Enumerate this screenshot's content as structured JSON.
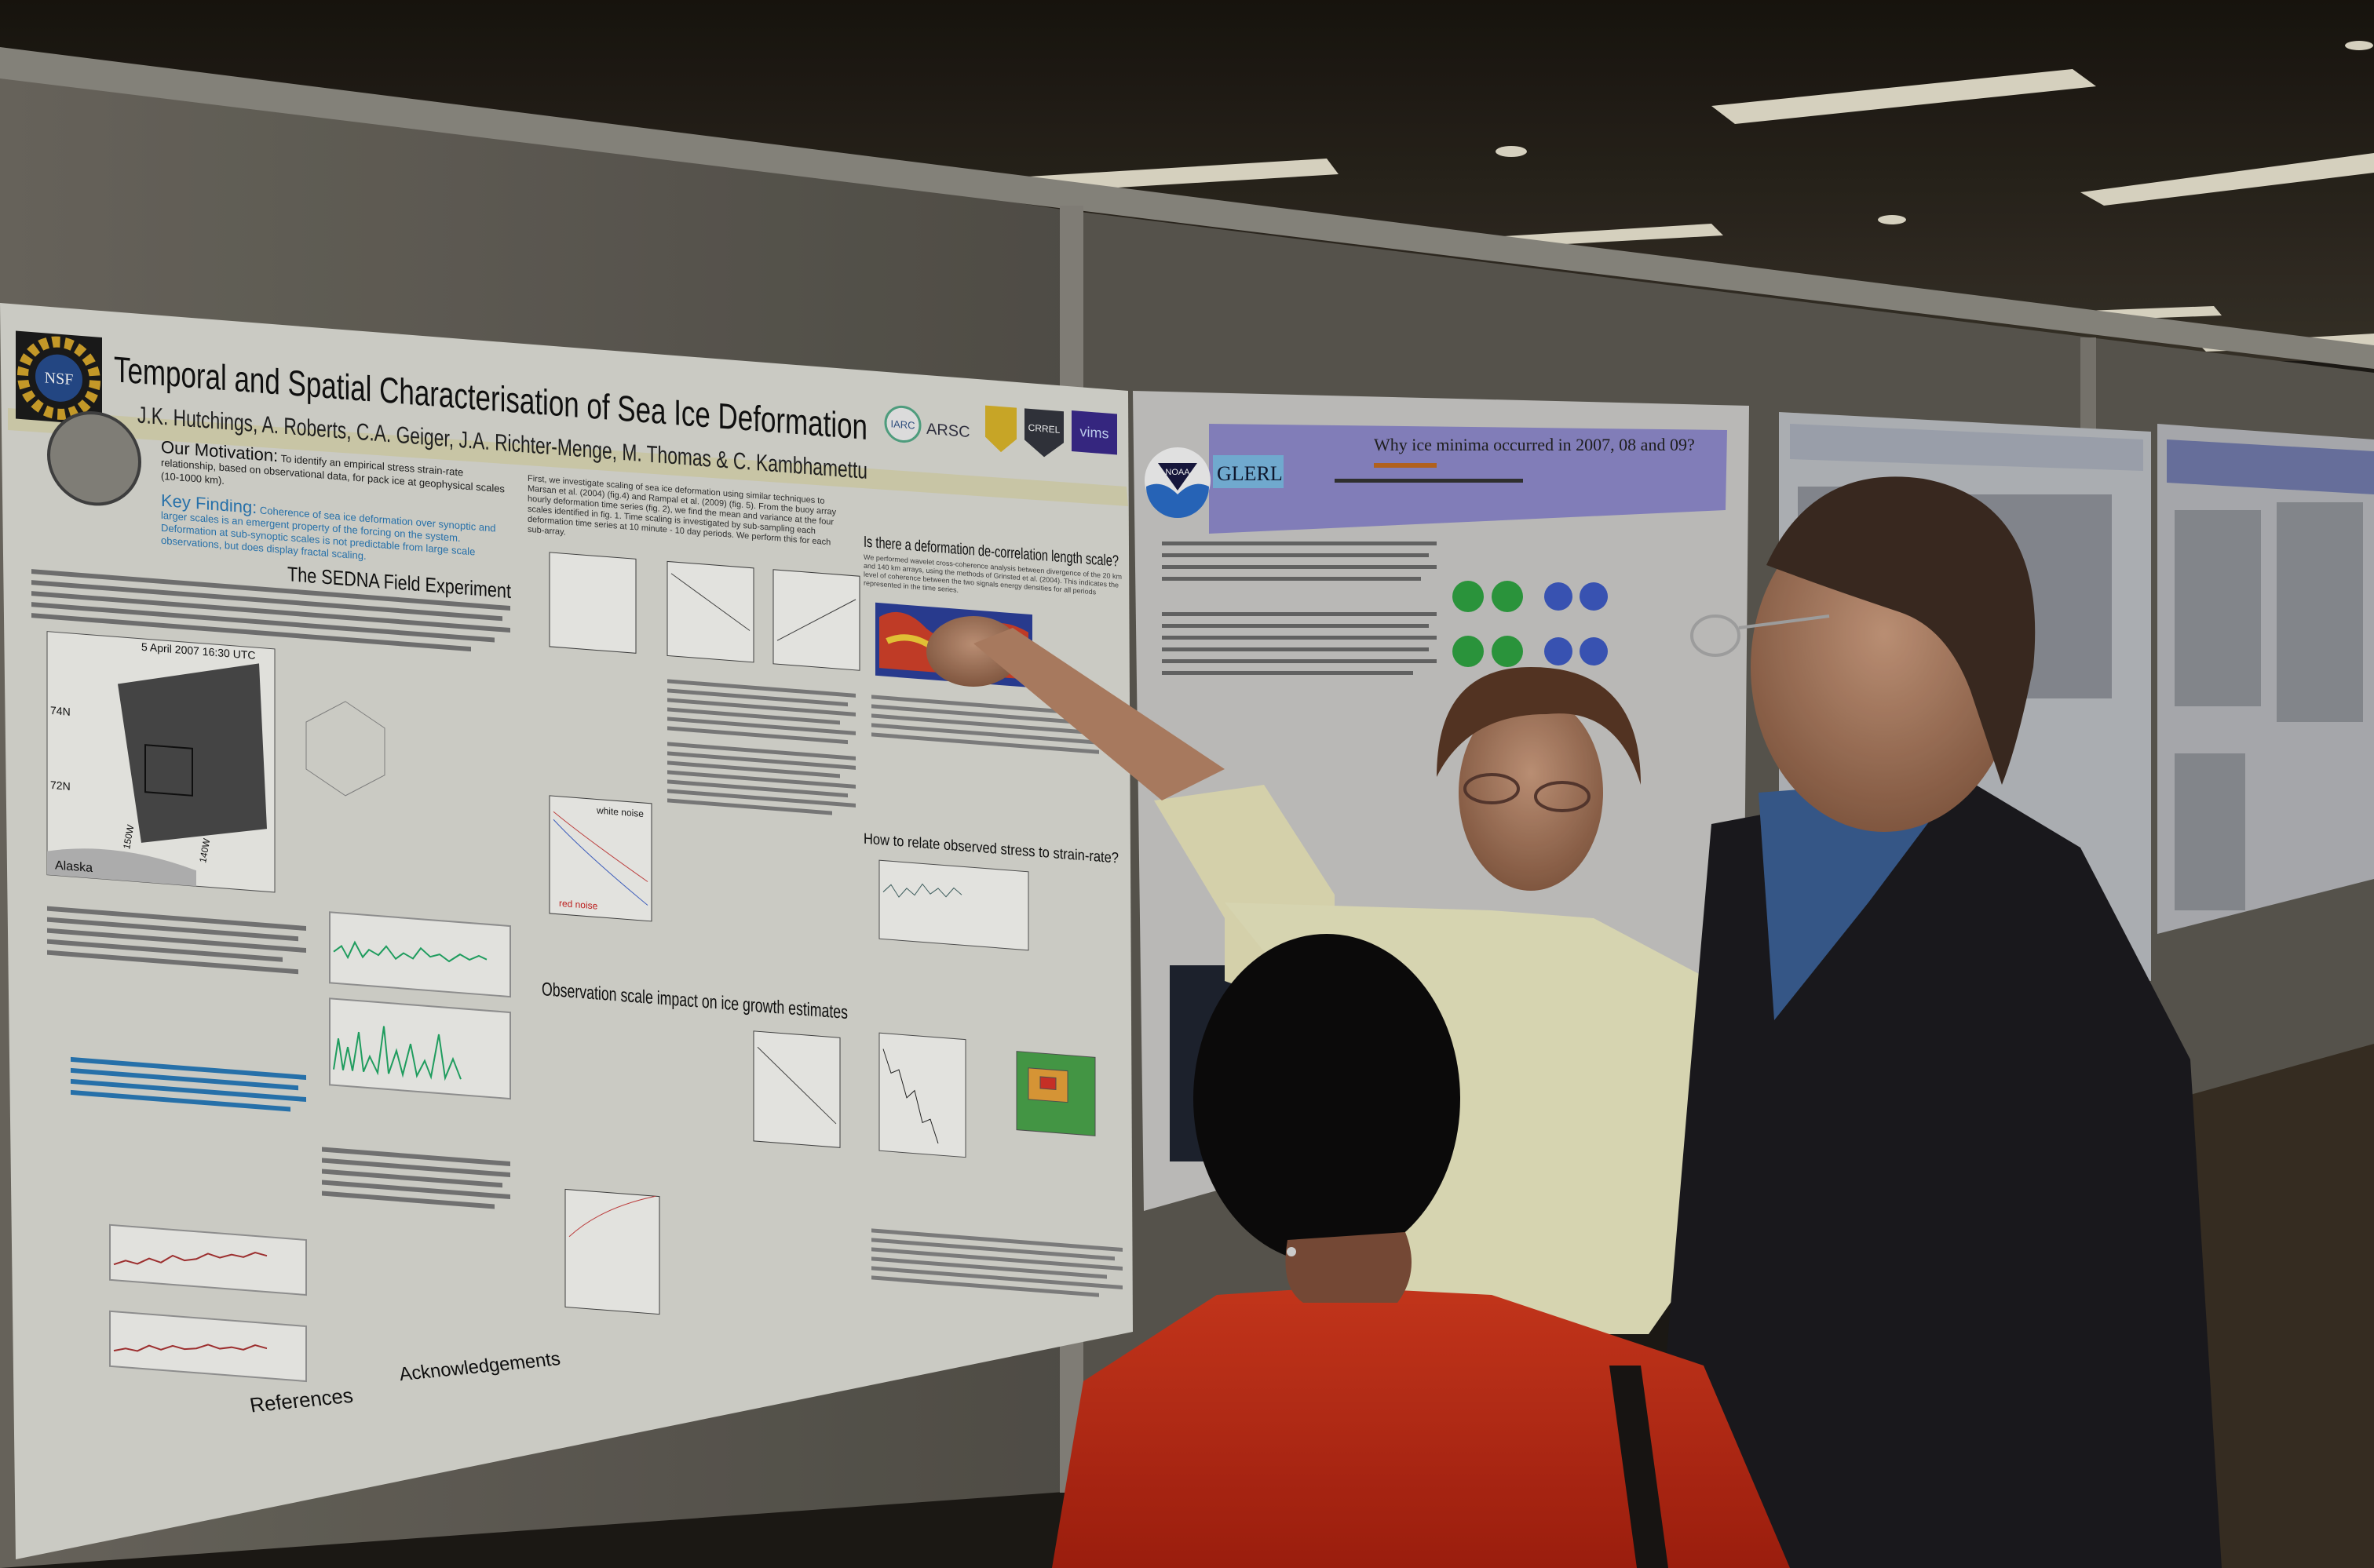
{
  "scene": {
    "description_colors": {
      "ceiling": "#2a251d",
      "partition": "#77736a",
      "carpet": "#3a3024",
      "poster": "#dcdcd6"
    }
  },
  "poster_main": {
    "title": "Temporal and Spatial Characterisation of Sea Ice Deformation",
    "authors": "J.K. Hutchings, A. Roberts, C.A. Geiger, J.A. Richter-Menge, M. Thomas & C. Kambhamettu",
    "logos": [
      "NSF",
      "IARC",
      "ARSC",
      "CRREL",
      "vims"
    ],
    "motivation_label": "Our Motivation:",
    "motivation_text": "To identify an empirical stress strain-rate relationship, based on observational data, for pack ice at geophysical scales (10-1000 km).",
    "key_finding_label": "Key Finding:",
    "key_finding_text": "Coherence of sea ice deformation over synoptic and larger scales is an emergent property of the forcing on the system. Deformation at sub-synoptic scales is not predictable from large scale observations, but does display fractal scaling.",
    "intro_text": "First, we investigate scaling of sea ice deformation using similar techniques to Marsan et al. (2004) (fig.4) and Rampal et al. (2009) (fig. 5). From the buoy array hourly deformation time series (fig. 2), we find the mean and variance at the four scales identified in fig. 1. Time scaling is investigated by sub-sampling each deformation time series at 10 minute - 10 day periods. We perform this for each sub-array.",
    "decorrelation_text": "We performed wavelet cross-coherence analysis between divergence of the 20 km and 140 km arrays, using the methods of Grinsted et al. (2004). This indicates the level of coherence between the two signals energy densities for all periods represented in the time series.",
    "sections": {
      "sedna": "The SEDNA Field Experiment",
      "decorrelation": "Is there a deformation de-correlation length scale?",
      "stress": "How to relate observed stress to strain-rate?",
      "growth": "Observation scale impact on ice growth estimates",
      "references": "References",
      "acknowledgements": "Acknowledgements"
    },
    "map": {
      "date": "5 April 2007 16:30 UTC",
      "lat_labels": [
        "74N",
        "72N"
      ],
      "lon_labels": [
        "150W",
        "140W"
      ],
      "region": "Alaska"
    },
    "figure_labels": [
      "white noise",
      "red noise"
    ]
  },
  "poster_noaa": {
    "title": "Why ice minima occurred in 2007, 08 and 09?",
    "logos": [
      "NOAA",
      "GLERL"
    ]
  }
}
